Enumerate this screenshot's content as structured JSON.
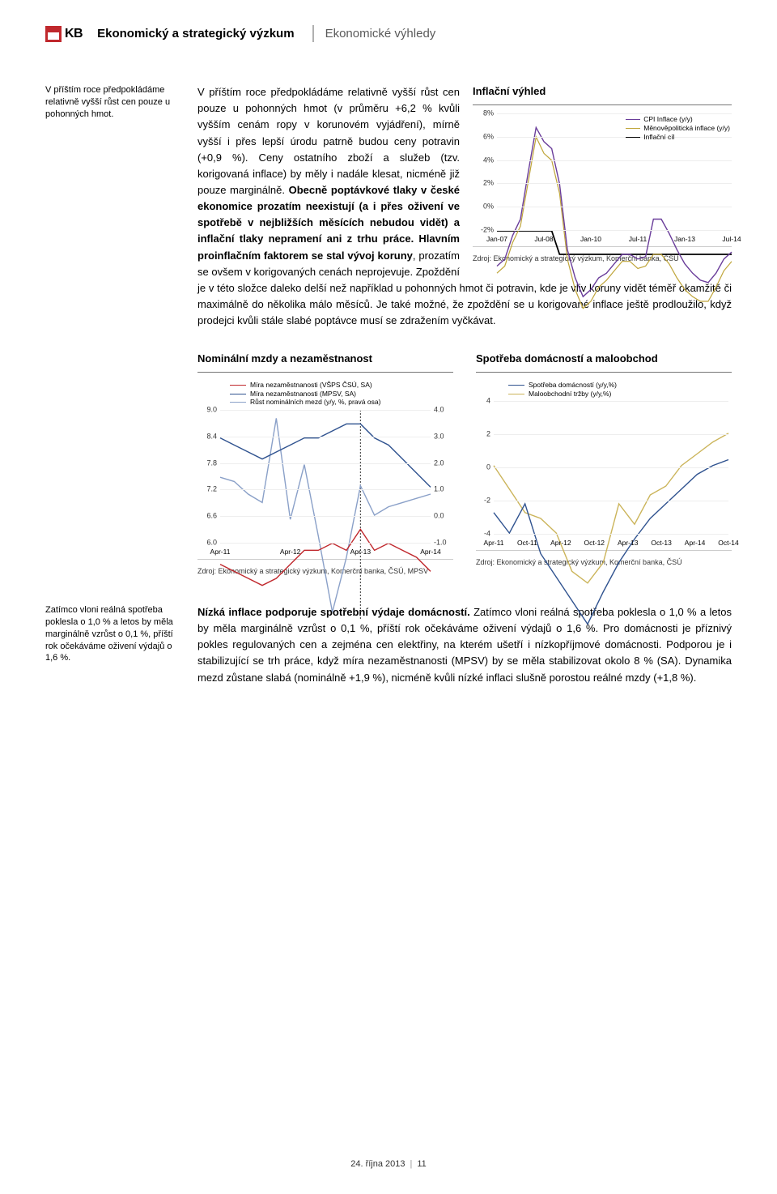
{
  "header": {
    "brand": "KB",
    "left": "Ekonomický a strategický výzkum",
    "right": "Ekonomické výhledy"
  },
  "side1": "V příštím roce předpokládáme relativně vyšší růst cen pouze u pohonných hmot.",
  "p1_lead": "V příštím roce předpokládáme relativně vyšší růst cen pouze u pohonných hmot (v průměru +6,2 % kvůli vyšším cenám ropy v korunovém vyjádření), mírně vyšší i přes lepší úrodu patrně budou ceny potravin (+0,9 %). Ceny ostatního zboží a služeb (tzv. korigovaná inflace) by měly i nadále klesat, nicméně již pouze marginálně. ",
  "p1_bold": "Obecně poptávkové tlaky v české ekonomice prozatím neexistují (a i přes oživení ve spotřebě v nejbližších měsících nebudou vidět) a inflační tlaky nepramení ani z trhu práce. Hlavním proinflačním faktorem se stal vývoj koruny",
  "p1_tail": ", prozatím se ovšem v korigovaných cenách neprojevuje. Zpoždění je v této složce daleko delší než například u pohonných hmot či potravin, kde je vliv koruny vidět téměř okamžitě či maximálně do několika málo měsíců. Je také možné, že zpoždění se u korigované inflace ještě prodloužilo, když prodejci kvůli stále slabé poptávce musí se zdražením vyčkávat.",
  "chart_infl": {
    "type": "line",
    "title": "Inflační výhled",
    "ylim": [
      -2,
      8
    ],
    "yticks": [
      "-2%",
      "0%",
      "2%",
      "4%",
      "6%",
      "8%"
    ],
    "xlabels": [
      "Jan-07",
      "Jul-08",
      "Jan-10",
      "Jul-11",
      "Jan-13",
      "Jul-14"
    ],
    "grid_color": "#eeeeee",
    "background": "#ffffff",
    "legend": [
      {
        "label": "CPI Inflace (y/y)",
        "color": "#6a3d9a"
      },
      {
        "label": "Měnověpolitická inflace (y/y)",
        "color": "#bfa53a"
      },
      {
        "label": "Inflační cíl",
        "color": "#000000"
      }
    ],
    "series_cpi": {
      "color": "#6a3d9a",
      "width": 1.4,
      "values": [
        1.5,
        1.8,
        2.8,
        3.5,
        5.5,
        7.4,
        6.8,
        6.5,
        5.0,
        2.2,
        1.0,
        0.2,
        0.5,
        1.0,
        1.2,
        1.6,
        2.0,
        2.0,
        1.8,
        1.9,
        3.5,
        3.5,
        2.9,
        2.2,
        1.6,
        1.2,
        0.9,
        0.8,
        1.2,
        1.8,
        2.1
      ]
    },
    "series_mp": {
      "color": "#bfa53a",
      "width": 1.2,
      "values": [
        1.2,
        1.5,
        2.5,
        3.2,
        5.1,
        7.0,
        6.3,
        6.0,
        4.6,
        1.8,
        0.5,
        -0.3,
        0.0,
        0.6,
        0.9,
        1.3,
        1.7,
        1.7,
        1.4,
        1.5,
        2.0,
        2.0,
        1.6,
        1.0,
        0.5,
        0.2,
        0.0,
        0.0,
        0.6,
        1.3,
        1.7
      ]
    },
    "series_tgt": {
      "color": "#000000",
      "width": 1.8,
      "values": [
        3,
        3,
        3,
        3,
        3,
        3,
        3,
        3,
        2,
        2,
        2,
        2,
        2,
        2,
        2,
        2,
        2,
        2,
        2,
        2,
        2,
        2,
        2,
        2,
        2,
        2,
        2,
        2,
        2,
        2,
        2
      ]
    },
    "source": "Zdroj: Ekonomický a strategický výzkum, Komerční banka, ČSÚ"
  },
  "chart_wage": {
    "type": "line-dualaxis",
    "title": "Nominální mzdy a nezaměstnanost",
    "ylim_left": [
      6.0,
      9.0
    ],
    "yticks_left": [
      "6.0",
      "6.6",
      "7.2",
      "7.8",
      "8.4",
      "9.0"
    ],
    "ylim_right": [
      -1.0,
      4.0
    ],
    "yticks_right": [
      "-1.0",
      "0.0",
      "1.0",
      "2.0",
      "3.0",
      "4.0"
    ],
    "xlabels": [
      "Apr-11",
      "Apr-12",
      "Apr-13",
      "Apr-14"
    ],
    "legend": [
      {
        "label": "Míra nezaměstnanosti (VŠPS ČSÚ, SA)",
        "color": "#c0282d"
      },
      {
        "label": "Míra nezaměstnanosti (MPSV, SA)",
        "color": "#2f528f"
      },
      {
        "label": "Růst nominálních mezd (y/y, %, pravá osa)",
        "color": "#8aa0c8"
      }
    ],
    "series_vsps": {
      "color": "#c0282d",
      "width": 1.4,
      "axis": "left",
      "values": [
        6.8,
        6.7,
        6.6,
        6.5,
        6.6,
        6.8,
        7.0,
        7.0,
        7.1,
        7.0,
        7.3,
        7.0,
        7.1,
        7.0,
        6.9,
        6.7
      ]
    },
    "series_mpsv": {
      "color": "#2f528f",
      "width": 1.4,
      "axis": "left",
      "values": [
        8.6,
        8.5,
        8.4,
        8.3,
        8.4,
        8.5,
        8.6,
        8.6,
        8.7,
        8.8,
        8.8,
        8.6,
        8.5,
        8.3,
        8.1,
        7.9
      ]
    },
    "series_wage": {
      "color": "#8aa0c8",
      "width": 1.4,
      "axis": "right",
      "values": [
        2.4,
        2.3,
        2.0,
        1.8,
        3.8,
        1.4,
        2.7,
        1.0,
        -0.8,
        0.5,
        2.2,
        1.5,
        1.7,
        1.8,
        1.9,
        2.0
      ]
    },
    "vline_idx": 10,
    "source": "Zdroj: Ekonomický a strategický výzkum, Komerční banka, ČSÚ, MPSV"
  },
  "chart_cons": {
    "type": "line",
    "title": "Spotřeba domácností a maloobchod",
    "ylim": [
      -4,
      4
    ],
    "yticks": [
      "-4",
      "-2",
      "0",
      "2",
      "4"
    ],
    "xlabels": [
      "Apr-11",
      "Oct-11",
      "Apr-12",
      "Oct-12",
      "Apr-13",
      "Oct-13",
      "Apr-14",
      "Oct-14"
    ],
    "legend": [
      {
        "label": "Spotřeba domácností (y/y,%)",
        "color": "#2f528f"
      },
      {
        "label": "Maloobchodní tržby (y/y,%)",
        "color": "#cbb45a"
      }
    ],
    "series_cons": {
      "color": "#2f528f",
      "width": 1.4,
      "values": [
        0.2,
        -0.5,
        0.5,
        -1.2,
        -2.0,
        -2.8,
        -3.6,
        -2.5,
        -1.5,
        -0.7,
        0.0,
        0.5,
        1.0,
        1.5,
        1.8,
        2.0
      ]
    },
    "series_ret": {
      "color": "#cbb45a",
      "width": 1.4,
      "values": [
        1.8,
        1.0,
        0.2,
        0.0,
        -0.5,
        -1.8,
        -2.2,
        -1.5,
        0.5,
        -0.2,
        0.8,
        1.1,
        1.8,
        2.2,
        2.6,
        2.9
      ]
    },
    "source": "Zdroj: Ekonomický a strategický výzkum, Komerční banka, ČSÚ"
  },
  "side2": "Zatímco vloni reálná spotřeba poklesla o 1,0 % a letos by měla marginálně vzrůst o 0,1 %, příští rok očekáváme oživení výdajů o 1,6 %.",
  "p2_bold": "Nízká inflace podporuje spotřební výdaje domácností.",
  "p2_tail": " Zatímco vloni reálná spotřeba poklesla o 1,0 % a letos by měla marginálně vzrůst o 0,1 %, příští rok očekáváme oživení výdajů o 1,6 %. Pro domácnosti je příznivý pokles regulovaných cen a zejména cen elektřiny, na kterém ušetří i nízkopříjmové domácnosti. Podporou je i stabilizující se trh práce, když míra nezaměstnanosti (MPSV) by se měla stabilizovat okolo 8 % (SA). Dynamika mezd zůstane slabá (nominálně +1,9 %), nicméně kvůli nízké inflaci slušně porostou reálné mzdy (+1,8 %).",
  "footer": {
    "date": "24. října 2013",
    "page": "11"
  }
}
